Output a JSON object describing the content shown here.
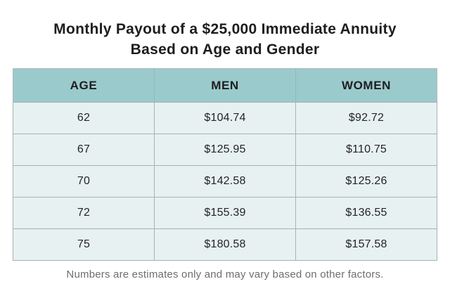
{
  "title": {
    "line1": "Monthly Payout of a $25,000 Immediate Annuity",
    "line2": "Based on Age and Gender"
  },
  "table": {
    "headers": [
      "AGE",
      "MEN",
      "WOMEN"
    ],
    "rows": [
      [
        "62",
        "$104.74",
        "$92.72"
      ],
      [
        "67",
        "$125.95",
        "$110.75"
      ],
      [
        "70",
        "$142.58",
        "$125.26"
      ],
      [
        "72",
        "$155.39",
        "$136.55"
      ],
      [
        "75",
        "$180.58",
        "$157.58"
      ]
    ]
  },
  "footnote": "Numbers are estimates only and may vary based on other factors.",
  "colors": {
    "header_bg": "#9bcacd",
    "row_bg": "#e7f1f1",
    "border_gray": "#a7b1b1",
    "header_divider": "#8dbcc0",
    "title_text": "#1d1d1d",
    "cell_text": "#242424",
    "footnote_text": "#6e6e6e"
  },
  "chart_data": {
    "type": "table",
    "title": "Monthly Payout of a $25,000 Immediate Annuity Based on Age and Gender",
    "categories": [
      62,
      67,
      70,
      72,
      75
    ],
    "xlabel": "AGE",
    "series": [
      {
        "name": "MEN",
        "values": [
          104.74,
          125.95,
          142.58,
          155.39,
          180.58
        ]
      },
      {
        "name": "WOMEN",
        "values": [
          92.72,
          110.75,
          125.26,
          136.55,
          157.58
        ]
      }
    ],
    "note": "Numbers are estimates only and may vary based on other factors."
  }
}
